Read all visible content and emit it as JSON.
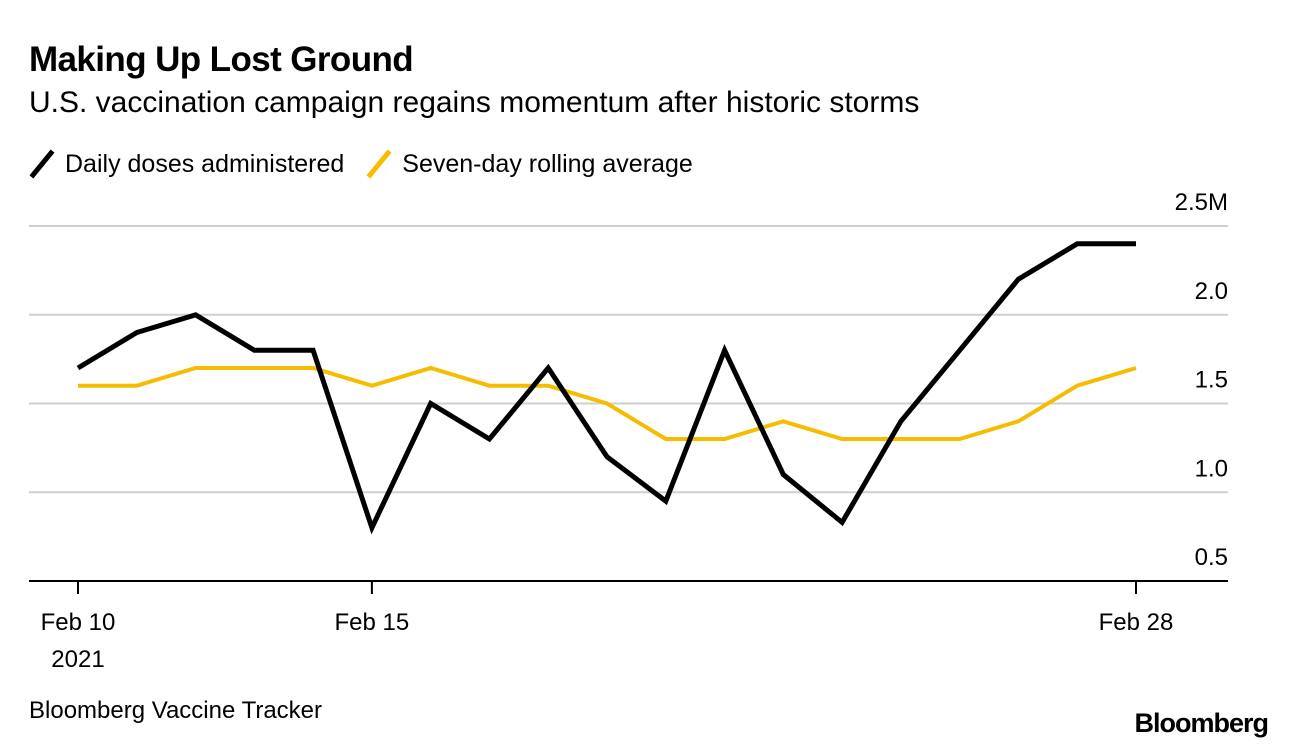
{
  "title": "Making Up Lost Ground",
  "subtitle": "U.S. vaccination campaign regains momentum after historic storms",
  "source": "Bloomberg Vaccine Tracker",
  "brand": "Bloomberg",
  "chart_data": {
    "type": "line",
    "x": [
      "Feb 10",
      "Feb 11",
      "Feb 12",
      "Feb 13",
      "Feb 14",
      "Feb 15",
      "Feb 16",
      "Feb 17",
      "Feb 18",
      "Feb 19",
      "Feb 20",
      "Feb 21",
      "Feb 22",
      "Feb 23",
      "Feb 24",
      "Feb 25",
      "Feb 26",
      "Feb 27",
      "Feb 28"
    ],
    "series": [
      {
        "name": "Daily doses administered",
        "color": "#000000",
        "values": [
          1.7,
          1.9,
          2.0,
          1.8,
          1.8,
          0.8,
          1.5,
          1.3,
          1.7,
          1.2,
          0.95,
          1.8,
          1.1,
          0.83,
          1.4,
          1.8,
          2.2,
          2.4,
          2.4
        ]
      },
      {
        "name": "Seven-day rolling average",
        "color": "#f5bc00",
        "values": [
          1.6,
          1.6,
          1.7,
          1.7,
          1.7,
          1.6,
          1.7,
          1.6,
          1.6,
          1.5,
          1.3,
          1.3,
          1.4,
          1.3,
          1.3,
          1.3,
          1.4,
          1.6,
          1.7
        ]
      }
    ],
    "ylim": [
      0.5,
      2.5
    ],
    "y_ticks": [
      {
        "value": 2.5,
        "label": "2.5M"
      },
      {
        "value": 2.0,
        "label": "2.0"
      },
      {
        "value": 1.5,
        "label": "1.5"
      },
      {
        "value": 1.0,
        "label": "1.0"
      },
      {
        "value": 0.5,
        "label": "0.5"
      }
    ],
    "x_ticks": [
      {
        "index": 0,
        "label": "Feb 10",
        "sublabel": "2021"
      },
      {
        "index": 5,
        "label": "Feb 15",
        "sublabel": ""
      },
      {
        "index": 18,
        "label": "Feb 28",
        "sublabel": ""
      }
    ],
    "grid": true,
    "legend_position": "top-left",
    "xlabel": "",
    "ylabel": ""
  }
}
